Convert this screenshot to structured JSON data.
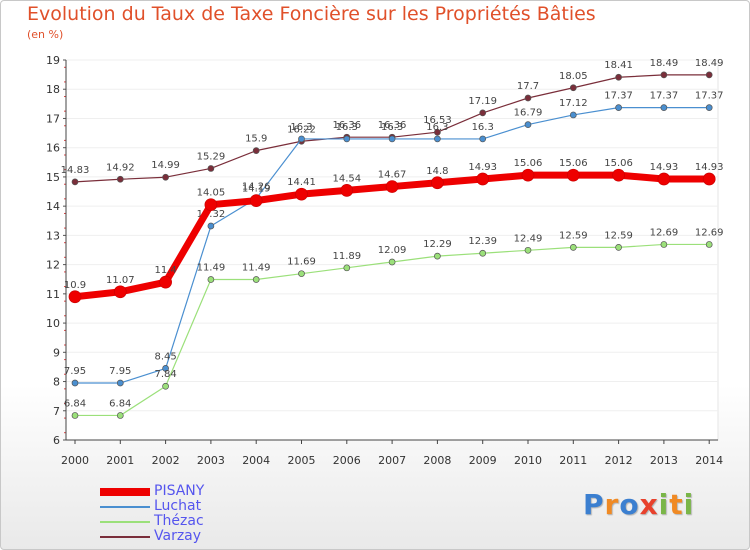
{
  "title": "Evolution du Taux de Taxe Foncière sur les Propriétés Bâties",
  "unit": "(en %)",
  "brand": {
    "letters": [
      "P",
      "r",
      "o",
      "x",
      "i",
      "t",
      "i"
    ],
    "colors": [
      "#3b7fd0",
      "#f08a24",
      "#3b7fd0",
      "#e8412c",
      "#7ab648",
      "#f08a24",
      "#7ab648"
    ]
  },
  "chart_data": {
    "type": "line",
    "x": [
      "2000",
      "2001",
      "2002",
      "2003",
      "2004",
      "2005",
      "2006",
      "2007",
      "2008",
      "2009",
      "2010",
      "2011",
      "2012",
      "2013",
      "2014"
    ],
    "ylim": [
      6,
      19
    ],
    "yticks": [
      "6",
      "7",
      "8",
      "9",
      "10",
      "11",
      "12",
      "13",
      "14",
      "15",
      "16",
      "17",
      "18",
      "19"
    ],
    "series": [
      {
        "name": "Varzay",
        "color": "#7a2e3a",
        "width": 1.2,
        "values": [
          14.83,
          14.92,
          14.99,
          15.29,
          15.9,
          16.22,
          16.36,
          16.36,
          16.53,
          17.19,
          17.7,
          18.05,
          18.41,
          18.49,
          18.49
        ],
        "labels": [
          "14.83",
          "14.92",
          "14.99",
          "15.29",
          "15.9",
          "16.22",
          "16.36",
          "16.36",
          "16.53",
          "17.19",
          "17.7",
          "18.05",
          "18.41",
          "18.49",
          "18.49"
        ]
      },
      {
        "name": "Luchat",
        "color": "#4a8fd0",
        "width": 1.2,
        "values": [
          7.95,
          7.95,
          8.45,
          13.32,
          14.26,
          16.3,
          16.3,
          16.3,
          16.3,
          16.3,
          16.79,
          17.12,
          17.37,
          17.37,
          17.37
        ],
        "labels": [
          "7.95",
          "7.95",
          "8.45",
          "13.32",
          "14.26",
          "16.3",
          "16.3",
          "16.3",
          "16.3",
          "16.3",
          "16.79",
          "17.12",
          "17.37",
          "17.37",
          "17.37"
        ]
      },
      {
        "name": "Thézac",
        "color": "#9be07a",
        "width": 1.2,
        "values": [
          6.84,
          6.84,
          7.84,
          11.49,
          11.49,
          11.69,
          11.89,
          12.09,
          12.29,
          12.39,
          12.49,
          12.59,
          12.59,
          12.69,
          12.69
        ],
        "labels": [
          "6.84",
          "6.84",
          "7.84",
          "11.49",
          "11.49",
          "11.69",
          "11.89",
          "12.09",
          "12.29",
          "12.39",
          "12.49",
          "12.59",
          "12.59",
          "12.69",
          "12.69"
        ]
      },
      {
        "name": "PISANY",
        "color": "#ee0000",
        "width": 7,
        "values": [
          10.9,
          11.07,
          11.4,
          14.05,
          14.19,
          14.41,
          14.54,
          14.67,
          14.8,
          14.93,
          15.06,
          15.06,
          15.06,
          14.93,
          14.93
        ],
        "labels": [
          "10.9",
          "11.07",
          "11.4",
          "14.05",
          "14.19",
          "14.41",
          "14.54",
          "14.67",
          "14.8",
          "14.93",
          "15.06",
          "15.06",
          "15.06",
          "14.93",
          "14.93"
        ]
      }
    ],
    "legend": [
      {
        "name": "PISANY",
        "color": "#ee0000"
      },
      {
        "name": "Luchat",
        "color": "#4a8fd0"
      },
      {
        "name": "Thézac",
        "color": "#9be07a"
      },
      {
        "name": "Varzay",
        "color": "#7a2e3a"
      }
    ]
  }
}
